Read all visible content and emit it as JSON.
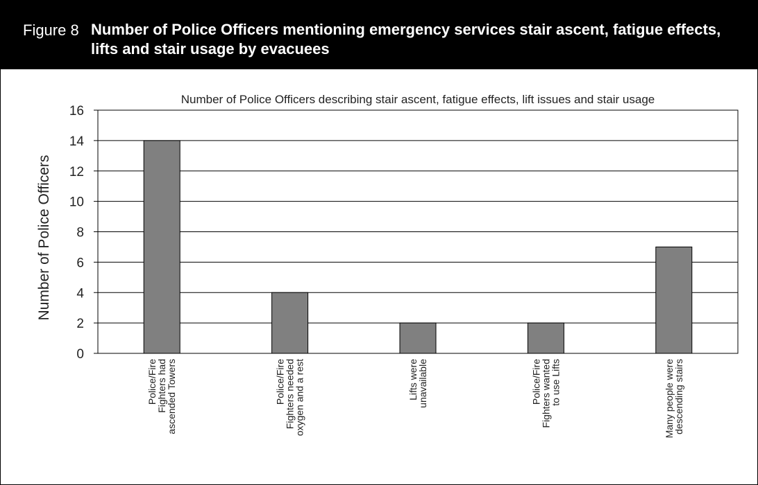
{
  "figure": {
    "label": "Figure 8",
    "title": "Number of Police Officers mentioning emergency services stair ascent, fatigue effects, lifts and stair usage by evacuees"
  },
  "chart_data": {
    "type": "bar",
    "title": "Number of Police Officers describing stair ascent, fatigue effects, lift issues and stair usage",
    "xlabel": "",
    "ylabel": "Number of Police Officers",
    "ylim": [
      0,
      16
    ],
    "yticks": [
      0,
      2,
      4,
      6,
      8,
      10,
      12,
      14,
      16
    ],
    "grid": true,
    "legend": "none",
    "bar_color": "#808080",
    "categories": [
      [
        "Police/Fire",
        "Fighters had",
        "ascended Towers"
      ],
      [
        "Police/Fire",
        "Fighters needed",
        "oxygen and a rest"
      ],
      [
        "Lifts were",
        "unavailable"
      ],
      [
        "Police/Fire",
        "Fighters wanted",
        "to use Lifts"
      ],
      [
        "Many people were",
        "descending stairs"
      ]
    ],
    "values": [
      14,
      4,
      2,
      2,
      7
    ]
  }
}
